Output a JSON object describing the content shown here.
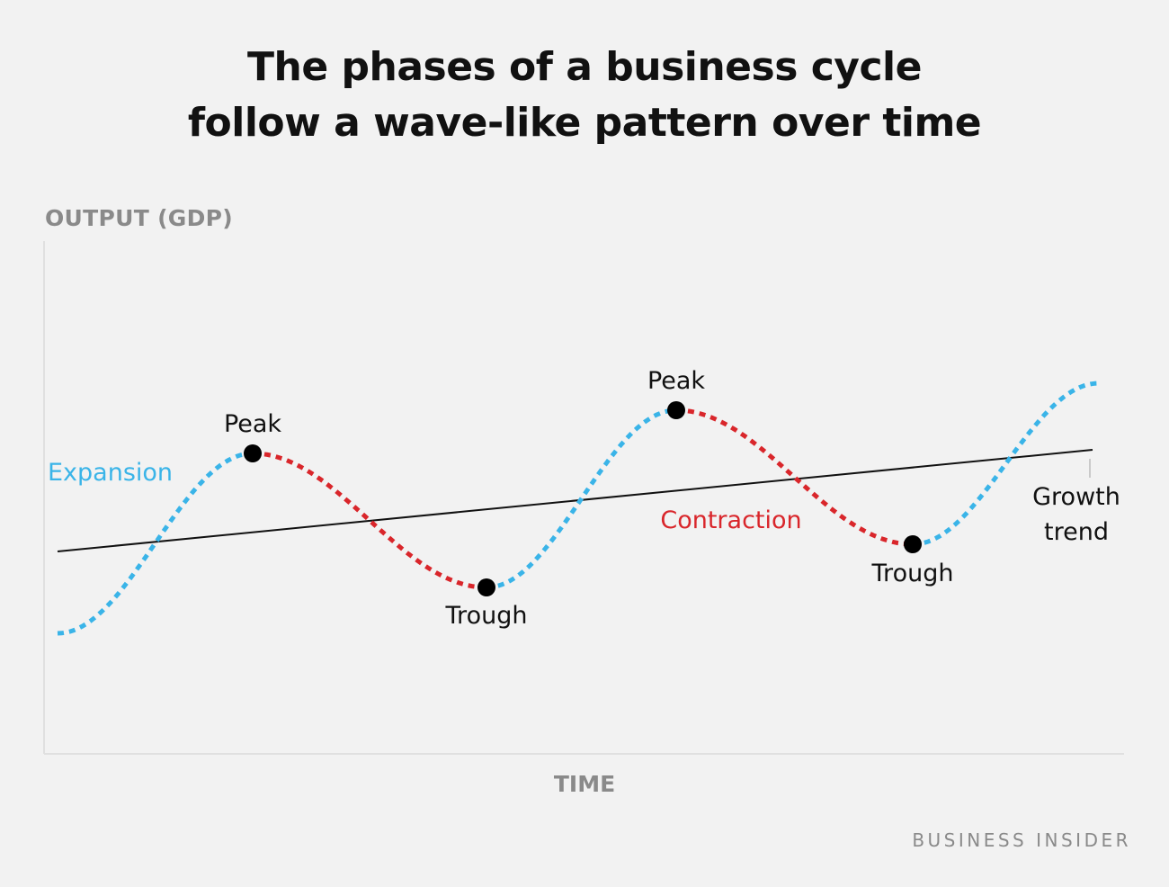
{
  "title_lines": [
    "The phases of a business cycle",
    "follow a wave-like pattern over time"
  ],
  "axis": {
    "y_label": "OUTPUT (GDP)",
    "x_label": "TIME"
  },
  "labels": {
    "peak_1": "Peak",
    "peak_2": "Peak",
    "trough_1": "Trough",
    "trough_2": "Trough",
    "expansion": "Expansion",
    "contraction": "Contraction",
    "growth_trend_line1": "Growth",
    "growth_trend_line2": "trend"
  },
  "brand": "BUSINESS INSIDER",
  "colors": {
    "background": "#f2f2f2",
    "expansion": "#3ab4e8",
    "contraction": "#d9262b",
    "text": "#111111",
    "axis_text": "#8a8a8a",
    "axis_line": "#e0e0e0"
  }
}
